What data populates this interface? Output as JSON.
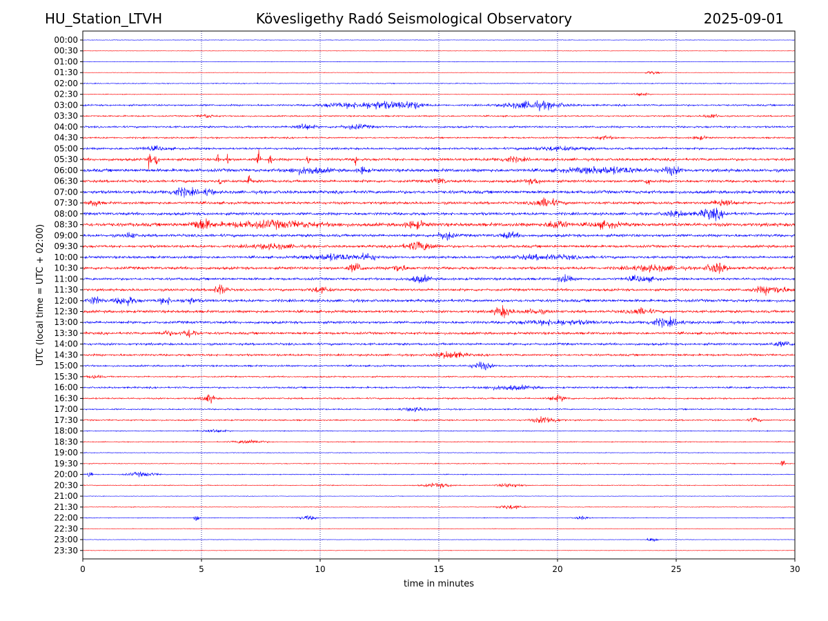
{
  "header": {
    "station": "HU_Station_LTVH",
    "observatory": "Kövesligethy Radó Seismological Observatory",
    "date": "2025-09-01"
  },
  "chart_data": {
    "type": "line",
    "xlabel": "time in minutes",
    "ylabel": "UTC (local time = UTC + 02:00)",
    "xlim": [
      0,
      30
    ],
    "xticks": [
      "0",
      "5",
      "10",
      "15",
      "20",
      "25",
      "30"
    ],
    "grid": "vertical dotted at 5-minute intervals",
    "colors": {
      "even_rows": "#0000ff",
      "odd_rows": "#ff0000",
      "grid": "#000080"
    },
    "rows": [
      "00:00",
      "00:30",
      "01:00",
      "01:30",
      "02:00",
      "02:30",
      "03:00",
      "03:30",
      "04:00",
      "04:30",
      "05:00",
      "05:30",
      "06:00",
      "06:30",
      "07:00",
      "07:30",
      "08:00",
      "08:30",
      "09:00",
      "09:30",
      "10:00",
      "10:30",
      "11:00",
      "11:30",
      "12:00",
      "12:30",
      "13:00",
      "13:30",
      "14:00",
      "14:30",
      "15:00",
      "15:30",
      "16:00",
      "16:30",
      "17:00",
      "17:30",
      "18:00",
      "18:30",
      "19:00",
      "19:30",
      "20:00",
      "20:30",
      "21:00",
      "21:30",
      "22:00",
      "22:30",
      "23:00",
      "23:30"
    ],
    "noise_level": [
      0.3,
      0.3,
      0.3,
      0.3,
      0.5,
      0.4,
      1.0,
      0.8,
      1.1,
      0.9,
      1.2,
      1.5,
      1.8,
      1.5,
      1.8,
      1.5,
      1.6,
      2.0,
      1.6,
      1.5,
      1.4,
      1.6,
      1.4,
      1.4,
      1.6,
      1.5,
      1.5,
      1.4,
      1.3,
      1.2,
      1.0,
      0.8,
      1.0,
      0.9,
      0.8,
      0.8,
      0.5,
      0.5,
      0.4,
      0.5,
      0.5,
      0.5,
      0.3,
      0.4,
      0.4,
      0.3,
      0.3,
      0.3
    ],
    "bursts": [
      [],
      [],
      [],
      [
        [
          24,
          0.3,
          2
        ]
      ],
      [],
      [
        [
          23.5,
          0.3,
          2
        ]
      ],
      [
        [
          12.5,
          0.8,
          4
        ],
        [
          13.8,
          0.6,
          4
        ],
        [
          19,
          1.2,
          4.5
        ],
        [
          11,
          1.0,
          2.5
        ]
      ],
      [
        [
          5.2,
          0.3,
          2
        ],
        [
          26.5,
          0.3,
          2.5
        ]
      ],
      [
        [
          9.3,
          0.4,
          3.5
        ],
        [
          11.5,
          0.6,
          2.5
        ]
      ],
      [
        [
          22,
          0.4,
          2
        ],
        [
          26,
          0.3,
          2
        ]
      ],
      [
        [
          3,
          0.6,
          2
        ],
        [
          20,
          1.2,
          2
        ]
      ],
      [
        [
          2.8,
          0.08,
          8
        ],
        [
          3.1,
          0.08,
          8
        ],
        [
          5.7,
          0.06,
          8
        ],
        [
          6.1,
          0.06,
          8
        ],
        [
          7.4,
          0.07,
          12
        ],
        [
          7.9,
          0.07,
          9
        ],
        [
          9.5,
          0.05,
          7
        ],
        [
          11.5,
          0.06,
          8
        ],
        [
          18,
          0.6,
          2.5
        ]
      ],
      [
        [
          9.5,
          0.8,
          3.5
        ],
        [
          11.8,
          0.2,
          4
        ],
        [
          22,
          1.5,
          3.5
        ],
        [
          24.8,
          0.4,
          4
        ]
      ],
      [
        [
          5.8,
          0.05,
          6
        ],
        [
          7.0,
          0.08,
          8
        ],
        [
          15,
          0.3,
          3
        ],
        [
          19,
          0.4,
          2.5
        ],
        [
          23.8,
          0.1,
          5
        ]
      ],
      [
        [
          4.2,
          0.6,
          4
        ],
        [
          5.3,
          0.2,
          4
        ]
      ],
      [
        [
          0.5,
          0.2,
          4
        ],
        [
          19.5,
          0.5,
          5
        ],
        [
          27,
          0.4,
          4.5
        ]
      ],
      [
        [
          26.5,
          0.5,
          6
        ],
        [
          25,
          0.5,
          3
        ]
      ],
      [
        [
          5,
          0.4,
          6
        ],
        [
          8,
          2.0,
          3.5
        ],
        [
          14,
          0.4,
          4
        ],
        [
          20,
          0.4,
          5
        ],
        [
          22,
          0.6,
          3
        ]
      ],
      [
        [
          2,
          0.2,
          3.5
        ],
        [
          15.3,
          0.3,
          5
        ],
        [
          18,
          0.4,
          3
        ]
      ],
      [
        [
          8,
          1.0,
          2.5
        ],
        [
          14.2,
          0.6,
          5
        ]
      ],
      [
        [
          10.5,
          1.0,
          3.5
        ],
        [
          12,
          0.4,
          3.5
        ],
        [
          19.5,
          1.5,
          2.5
        ]
      ],
      [
        [
          11.5,
          0.3,
          5
        ],
        [
          13.3,
          0.3,
          4
        ],
        [
          24,
          1.0,
          3
        ],
        [
          26.7,
          0.4,
          6
        ]
      ],
      [
        [
          14.2,
          0.4,
          4
        ],
        [
          20.3,
          0.3,
          4
        ],
        [
          23.5,
          0.6,
          3
        ]
      ],
      [
        [
          5.8,
          0.25,
          6
        ],
        [
          10,
          0.4,
          3
        ],
        [
          29,
          0.7,
          4.5
        ]
      ],
      [
        [
          0.5,
          0.3,
          4
        ],
        [
          1.8,
          0.4,
          5
        ],
        [
          3.5,
          0.3,
          3.5
        ],
        [
          4.5,
          0.3,
          3
        ]
      ],
      [
        [
          17.7,
          0.35,
          6
        ],
        [
          23.5,
          0.5,
          3.5
        ],
        [
          19,
          0.5,
          2.5
        ]
      ],
      [
        [
          24.5,
          0.7,
          4
        ],
        [
          20,
          1.5,
          2.5
        ]
      ],
      [
        [
          4.5,
          0.3,
          5
        ],
        [
          3.5,
          0.3,
          2.5
        ]
      ],
      [
        [
          29.5,
          0.5,
          2.5
        ]
      ],
      [
        [
          15.5,
          0.6,
          4
        ]
      ],
      [
        [
          16.8,
          0.4,
          4.5
        ]
      ],
      [
        [
          0.5,
          0.3,
          2
        ]
      ],
      [
        [
          18,
          1.0,
          2.5
        ]
      ],
      [
        [
          5.3,
          0.25,
          5
        ],
        [
          20,
          0.4,
          3
        ]
      ],
      [
        [
          14,
          0.6,
          2
        ]
      ],
      [
        [
          19.5,
          0.5,
          4
        ],
        [
          28.3,
          0.2,
          3
        ]
      ],
      [
        [
          5.5,
          0.5,
          2
        ]
      ],
      [
        [
          7,
          0.6,
          2.5
        ]
      ],
      [],
      [
        [
          29.5,
          0.1,
          4
        ]
      ],
      [
        [
          0.3,
          0.1,
          5
        ],
        [
          2.5,
          0.6,
          2.5
        ]
      ],
      [
        [
          15,
          0.6,
          2.5
        ],
        [
          18,
          0.5,
          2.5
        ]
      ],
      [],
      [
        [
          18,
          0.5,
          2.5
        ]
      ],
      [
        [
          4.8,
          0.1,
          5
        ],
        [
          9.5,
          0.4,
          2.5
        ],
        [
          21,
          0.3,
          2
        ]
      ],
      [],
      [
        [
          24,
          0.2,
          3
        ]
      ],
      []
    ]
  }
}
